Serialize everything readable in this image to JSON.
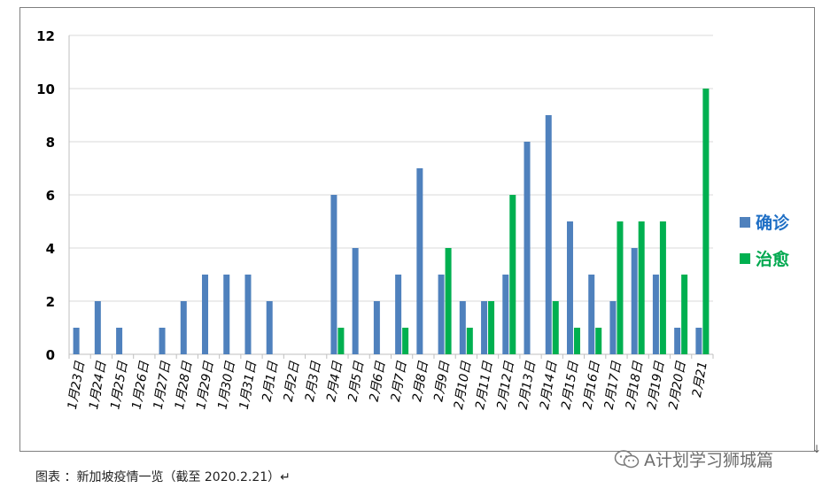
{
  "chart_data": {
    "type": "bar",
    "categories": [
      "1月23日",
      "1月24日",
      "1月25日",
      "1月26日",
      "1月27日",
      "1月28日",
      "1月29日",
      "1月30日",
      "1月31日",
      "2月1日",
      "2月2日",
      "2月3日",
      "2月4日",
      "2月5日",
      "2月6日",
      "2月7日",
      "2月8日",
      "2月9日",
      "2月10日",
      "2月11日",
      "2月12日",
      "2月13日",
      "2月14日",
      "2月15日",
      "2月16日",
      "2月17日",
      "2月18日",
      "2月19日",
      "2月20日",
      "2月21"
    ],
    "series": [
      {
        "name": "确诊",
        "color": "#4f81bd",
        "values": [
          1,
          2,
          1,
          0,
          1,
          2,
          3,
          3,
          3,
          2,
          0,
          0,
          6,
          4,
          2,
          3,
          7,
          3,
          2,
          2,
          3,
          8,
          9,
          5,
          3,
          2,
          4,
          3,
          1,
          1
        ]
      },
      {
        "name": "治愈",
        "color": "#00b050",
        "values": [
          0,
          0,
          0,
          0,
          0,
          0,
          0,
          0,
          0,
          0,
          0,
          0,
          1,
          0,
          0,
          1,
          0,
          4,
          1,
          2,
          6,
          0,
          2,
          1,
          1,
          5,
          5,
          5,
          3,
          10
        ]
      }
    ],
    "ylim": [
      0,
      12
    ],
    "yticks": [
      0,
      2,
      4,
      6,
      8,
      10,
      12
    ],
    "grid": true,
    "legend": "right",
    "title": "",
    "xlabel": "",
    "ylabel": ""
  },
  "caption": "图表 ：新加坡疫情一览（截至 2020.2.21）↵",
  "watermark": "A计划学习狮城篇",
  "corner_mark": "↓"
}
